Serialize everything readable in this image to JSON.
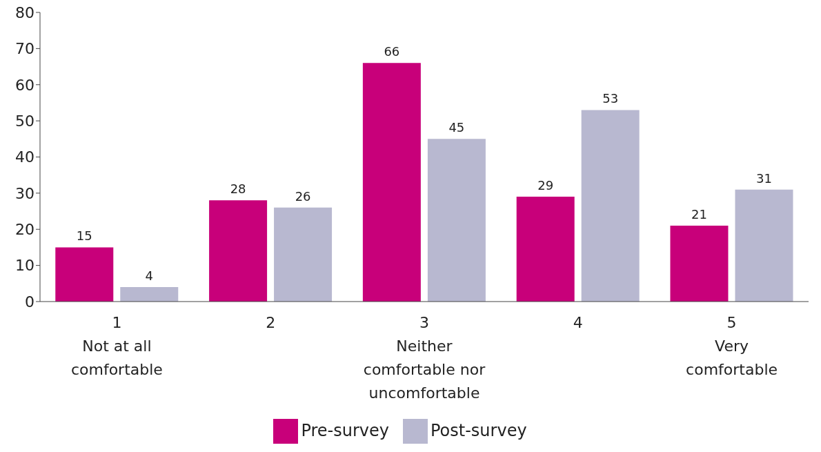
{
  "chart_data": {
    "type": "bar",
    "categories": [
      "1\nNot at all\ncomfortable",
      "2",
      "3\nNeither\ncomfortable nor\nuncomfortable",
      "4",
      "5\nVery\ncomfortable"
    ],
    "series": [
      {
        "name": "Pre-survey",
        "color": "#c8007a",
        "values": [
          15,
          28,
          66,
          29,
          21
        ]
      },
      {
        "name": "Post-survey",
        "color": "#b8b8d0",
        "values": [
          4,
          26,
          45,
          53,
          31
        ]
      }
    ],
    "ylim": [
      0,
      80
    ],
    "yticks": [
      0,
      10,
      20,
      30,
      40,
      50,
      60,
      70,
      80
    ],
    "grid": false,
    "legend": "bottom",
    "data_labels": true
  }
}
